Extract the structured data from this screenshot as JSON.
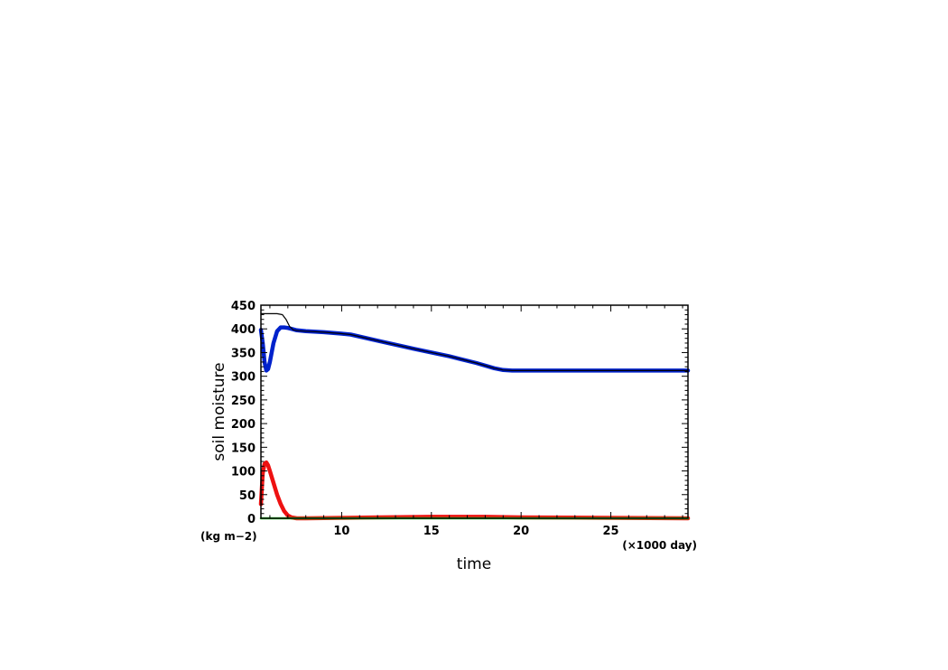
{
  "chart_data": {
    "type": "line",
    "title": "",
    "xlabel": "time",
    "ylabel": "soil moisture",
    "x_unit": "(×1000 day)",
    "y_unit": "(kg m−2)",
    "xlim": [
      5.5,
      29.3
    ],
    "ylim": [
      0,
      450
    ],
    "x_ticks": [
      10,
      15,
      20,
      25
    ],
    "y_ticks": [
      0,
      50,
      100,
      150,
      200,
      250,
      300,
      350,
      400,
      450
    ],
    "grid": false,
    "legend": "none",
    "series": [
      {
        "color": "#000000",
        "x": [
          5.5,
          5.7,
          6.0,
          6.4,
          6.7,
          6.9,
          7.1,
          7.3,
          7.6,
          8.0,
          9.0,
          10.0,
          10.5,
          12.0,
          14.0,
          16.0,
          17.5,
          18.5,
          19.0,
          19.5,
          20.0,
          22.0,
          25.0,
          29.3
        ],
        "y": [
          432,
          432,
          432,
          432,
          430,
          420,
          405,
          398,
          396,
          395,
          393,
          390,
          388,
          375,
          358,
          342,
          328,
          317,
          313,
          312,
          312,
          312,
          312,
          312
        ]
      },
      {
        "color": "#0022cc",
        "x": [
          5.5,
          5.6,
          5.7,
          5.8,
          5.9,
          6.0,
          6.1,
          6.2,
          6.4,
          6.6,
          6.8,
          7.0,
          7.2,
          7.5,
          8.0,
          9.0,
          10.0,
          10.5,
          12.0,
          14.0,
          16.0,
          17.5,
          18.5,
          19.0,
          19.5,
          20.0,
          22.0,
          25.0,
          29.3
        ],
        "y": [
          398,
          370,
          330,
          312,
          315,
          330,
          350,
          370,
          395,
          403,
          403,
          402,
          400,
          397,
          395,
          393,
          390,
          388,
          375,
          358,
          342,
          328,
          317,
          313,
          312,
          312,
          312,
          312,
          312
        ]
      },
      {
        "color": "#ee1111",
        "x": [
          5.5,
          5.6,
          5.7,
          5.8,
          5.9,
          6.0,
          6.2,
          6.4,
          6.6,
          6.8,
          7.0,
          7.2,
          7.5,
          8.0,
          10.0,
          12.0,
          15.0,
          18.0,
          20.0,
          25.0,
          29.3
        ],
        "y": [
          30,
          95,
          115,
          118,
          112,
          100,
          75,
          50,
          30,
          15,
          6,
          2,
          0,
          0,
          1,
          2,
          3,
          3,
          2,
          1,
          0
        ]
      },
      {
        "color": "#33dd33",
        "x": [
          5.5,
          29.3
        ],
        "y": [
          0,
          0
        ]
      }
    ]
  }
}
